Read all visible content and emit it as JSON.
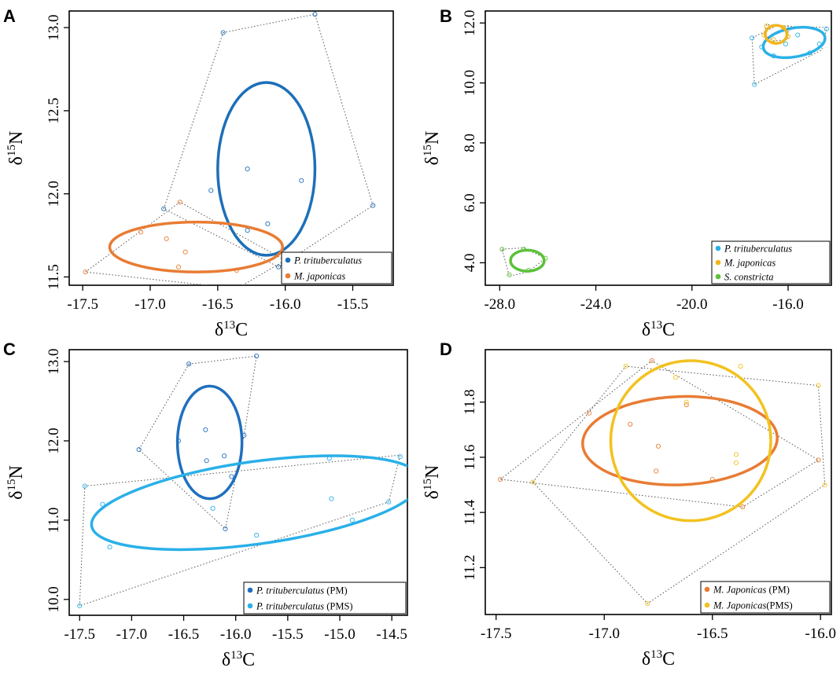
{
  "chart_data": [
    {
      "panel": "A",
      "type": "scatter",
      "xlabel": "δ13C",
      "ylabel": "δ15N",
      "xlim": [
        -17.6,
        -15.2
      ],
      "ylim": [
        11.45,
        13.1
      ],
      "xticks": [
        "-17.5",
        "-17.0",
        "-16.5",
        "-16.0",
        "-15.5"
      ],
      "xtick_values": [
        -17.5,
        -17.0,
        -16.5,
        -16.0,
        -15.5
      ],
      "yticks": [
        "11.5",
        "12.0",
        "12.5",
        "13.0"
      ],
      "ytick_values": [
        11.5,
        12.0,
        12.5,
        13.0
      ],
      "legend_position": "bottom-right",
      "series": [
        {
          "name": "P. trituberculatus",
          "suffix": "",
          "color": "#1d6fb8",
          "points": [
            [
              -16.46,
              12.97
            ],
            [
              -15.78,
              13.08
            ],
            [
              -16.9,
              11.91
            ],
            [
              -16.55,
              12.02
            ],
            [
              -16.28,
              12.15
            ],
            [
              -15.88,
              12.08
            ],
            [
              -16.28,
              11.78
            ],
            [
              -16.13,
              11.82
            ],
            [
              -16.05,
              11.56
            ],
            [
              -15.35,
              11.93
            ]
          ],
          "hull": [
            [
              -16.46,
              12.97
            ],
            [
              -15.78,
              13.08
            ],
            [
              -15.35,
              11.93
            ],
            [
              -16.05,
              11.56
            ],
            [
              -16.9,
              11.91
            ]
          ],
          "ellipse": {
            "cx": -16.14,
            "cy": 12.15,
            "rx": 0.36,
            "ry": 0.52,
            "angle": 0
          }
        },
        {
          "name": "M. japonicas",
          "suffix": "",
          "color": "#e87c34",
          "points": [
            [
              -17.48,
              11.53
            ],
            [
              -16.78,
              11.95
            ],
            [
              -17.07,
              11.77
            ],
            [
              -16.88,
              11.73
            ],
            [
              -16.74,
              11.65
            ],
            [
              -16.79,
              11.56
            ],
            [
              -16.36,
              11.54
            ],
            [
              -16.0,
              11.6
            ],
            [
              -16.36,
              11.43
            ]
          ],
          "hull": [
            [
              -17.48,
              11.53
            ],
            [
              -16.78,
              11.95
            ],
            [
              -16.0,
              11.6
            ],
            [
              -16.36,
              11.43
            ]
          ],
          "ellipse": {
            "cx": -16.66,
            "cy": 11.68,
            "rx": 0.64,
            "ry": 0.15,
            "angle": 0
          }
        }
      ]
    },
    {
      "panel": "B",
      "type": "scatter",
      "xlabel": "δ13C",
      "ylabel": "δ15N",
      "xlim": [
        -28.6,
        -14.2
      ],
      "ylim": [
        3.25,
        12.4
      ],
      "xticks": [
        "-28.0",
        "-24.0",
        "-20.0",
        "-16.0"
      ],
      "xtick_values": [
        -28.0,
        -24.0,
        -20.0,
        -16.0
      ],
      "yticks": [
        "4.0",
        "6.0",
        "8.0",
        "10.0",
        "12.0"
      ],
      "ytick_values": [
        4.0,
        6.0,
        8.0,
        10.0,
        12.0
      ],
      "legend_position": "bottom-right",
      "series": [
        {
          "name": "P. trituberculatus",
          "suffix": "",
          "color": "#2ab0e8",
          "points": [
            [
              -17.4,
              9.95
            ],
            [
              -17.5,
              11.5
            ],
            [
              -17.1,
              11.2
            ],
            [
              -16.1,
              11.3
            ],
            [
              -15.6,
              11.6
            ],
            [
              -15.1,
              11.0
            ],
            [
              -14.7,
              11.3
            ],
            [
              -14.4,
              11.8
            ],
            [
              -16.6,
              10.9
            ]
          ],
          "hull": [
            [
              -17.4,
              9.95
            ],
            [
              -17.5,
              11.5
            ],
            [
              -16.5,
              11.9
            ],
            [
              -14.4,
              11.85
            ],
            [
              -14.6,
              11.1
            ]
          ],
          "ellipse": {
            "cx": -15.75,
            "cy": 11.35,
            "rx": 1.3,
            "ry": 0.48,
            "angle": -10
          }
        },
        {
          "name": "M. japonicas",
          "suffix": "",
          "color": "#f2b51c",
          "points": [
            [
              -16.9,
              11.9
            ],
            [
              -16.2,
              11.85
            ],
            [
              -16.6,
              11.45
            ],
            [
              -16.0,
              11.55
            ],
            [
              -17.0,
              11.6
            ]
          ],
          "hull": [
            [
              -17.0,
              11.6
            ],
            [
              -16.9,
              11.95
            ],
            [
              -16.0,
              11.9
            ],
            [
              -16.0,
              11.45
            ],
            [
              -16.6,
              11.4
            ]
          ],
          "ellipse": {
            "cx": -16.5,
            "cy": 11.62,
            "rx": 0.45,
            "ry": 0.3,
            "angle": 0
          }
        },
        {
          "name": "S. constricta",
          "suffix": "",
          "color": "#5dc13a",
          "points": [
            [
              -27.9,
              4.45
            ],
            [
              -27.6,
              3.6
            ],
            [
              -27.0,
              4.45
            ],
            [
              -26.8,
              3.75
            ],
            [
              -26.1,
              4.15
            ]
          ],
          "hull": [
            [
              -27.9,
              4.45
            ],
            [
              -27.0,
              4.5
            ],
            [
              -26.1,
              4.15
            ],
            [
              -26.8,
              3.7
            ],
            [
              -27.6,
              3.55
            ]
          ],
          "ellipse": {
            "cx": -26.85,
            "cy": 4.07,
            "rx": 0.7,
            "ry": 0.35,
            "angle": 0
          }
        }
      ]
    },
    {
      "panel": "C",
      "type": "scatter",
      "xlabel": "δ13C",
      "ylabel": "δ15N",
      "xlim": [
        -17.6,
        -14.35
      ],
      "ylim": [
        9.8,
        13.15
      ],
      "xticks": [
        "-17.5",
        "-17.0",
        "-16.5",
        "-16.0",
        "-15.5",
        "-15.0",
        "-14.5"
      ],
      "xtick_values": [
        -17.5,
        -17.0,
        -16.5,
        -16.0,
        -15.5,
        -15.0,
        -14.5
      ],
      "yticks": [
        "10.0",
        "11.0",
        "12.0",
        "13.0"
      ],
      "ytick_values": [
        10.0,
        11.0,
        12.0,
        13.0
      ],
      "legend_position": "bottom-right",
      "series": [
        {
          "name": "P. trituberculatus",
          "suffix": " (PM)",
          "color": "#1f6fbe",
          "points": [
            [
              -16.45,
              12.97
            ],
            [
              -15.8,
              13.07
            ],
            [
              -16.93,
              11.89
            ],
            [
              -16.55,
              12.0
            ],
            [
              -16.29,
              12.14
            ],
            [
              -15.92,
              12.07
            ],
            [
              -16.28,
              11.75
            ],
            [
              -16.11,
              11.81
            ],
            [
              -16.04,
              11.55
            ],
            [
              -16.1,
              10.89
            ]
          ],
          "hull": [
            [
              -16.45,
              12.97
            ],
            [
              -15.8,
              13.07
            ],
            [
              -15.92,
              12.07
            ],
            [
              -16.1,
              10.89
            ],
            [
              -16.93,
              11.89
            ]
          ],
          "ellipse": {
            "cx": -16.25,
            "cy": 11.98,
            "rx": 0.31,
            "ry": 0.71,
            "angle": 0
          }
        },
        {
          "name": "P. trituberculatus",
          "suffix": " (PMS)",
          "color": "#2ab0e8",
          "points": [
            [
              -17.5,
              9.92
            ],
            [
              -17.45,
              11.43
            ],
            [
              -17.28,
              11.2
            ],
            [
              -17.21,
              10.66
            ],
            [
              -16.22,
              11.15
            ],
            [
              -15.8,
              10.81
            ],
            [
              -15.1,
              11.78
            ],
            [
              -15.08,
              11.27
            ],
            [
              -14.88,
              11.0
            ],
            [
              -14.53,
              11.23
            ],
            [
              -14.42,
              11.8
            ]
          ],
          "hull": [
            [
              -17.5,
              9.92
            ],
            [
              -17.45,
              11.43
            ],
            [
              -14.42,
              11.82
            ],
            [
              -14.53,
              11.23
            ]
          ],
          "ellipse": {
            "cx": -15.8,
            "cy": 11.22,
            "rx": 1.6,
            "ry": 0.52,
            "angle": -8
          }
        }
      ]
    },
    {
      "panel": "D",
      "type": "scatter",
      "xlabel": "δ13C",
      "ylabel": "δ15N",
      "xlim": [
        -17.55,
        -15.95
      ],
      "ylim": [
        11.03,
        11.99
      ],
      "xticks": [
        "-17.5",
        "-17.0",
        "-16.5",
        "-16.0"
      ],
      "xtick_values": [
        -17.5,
        -17.0,
        -16.5,
        -16.0
      ],
      "yticks": [
        "11.2",
        "11.4",
        "11.6",
        "11.8"
      ],
      "ytick_values": [
        11.2,
        11.4,
        11.6,
        11.8
      ],
      "legend_position": "bottom-right",
      "series": [
        {
          "name": "M. Japonicas",
          "suffix": " (PM)",
          "color": "#e87c34",
          "points": [
            [
              -17.48,
              11.52
            ],
            [
              -16.78,
              11.95
            ],
            [
              -17.07,
              11.76
            ],
            [
              -16.88,
              11.72
            ],
            [
              -16.75,
              11.64
            ],
            [
              -16.76,
              11.55
            ],
            [
              -16.36,
              11.42
            ],
            [
              -16.01,
              11.59
            ],
            [
              -16.5,
              11.52
            ],
            [
              -16.62,
              11.79
            ]
          ],
          "hull": [
            [
              -17.48,
              11.52
            ],
            [
              -16.78,
              11.95
            ],
            [
              -16.01,
              11.59
            ],
            [
              -16.36,
              11.42
            ]
          ],
          "ellipse": {
            "cx": -16.65,
            "cy": 11.66,
            "rx": 0.45,
            "ry": 0.16,
            "angle": -2
          }
        },
        {
          "name": "M. Japonicas",
          "suffix": "(PMS)",
          "color": "#f2c220",
          "points": [
            [
              -16.9,
              11.93
            ],
            [
              -16.67,
              11.89
            ],
            [
              -16.37,
              11.93
            ],
            [
              -16.01,
              11.86
            ],
            [
              -15.98,
              11.5
            ],
            [
              -16.39,
              11.61
            ],
            [
              -16.39,
              11.58
            ],
            [
              -16.62,
              11.8
            ],
            [
              -16.8,
              11.07
            ],
            [
              -17.33,
              11.51
            ]
          ],
          "hull": [
            [
              -17.33,
              11.51
            ],
            [
              -16.9,
              11.93
            ],
            [
              -16.01,
              11.86
            ],
            [
              -15.98,
              11.5
            ],
            [
              -16.8,
              11.07
            ]
          ],
          "ellipse": {
            "cx": -16.6,
            "cy": 11.66,
            "rx": 0.37,
            "ry": 0.29,
            "angle": 0
          }
        }
      ]
    }
  ]
}
